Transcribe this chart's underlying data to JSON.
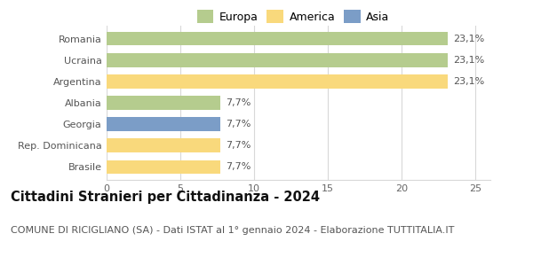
{
  "categories": [
    "Romania",
    "Ucraina",
    "Argentina",
    "Albania",
    "Georgia",
    "Rep. Dominicana",
    "Brasile"
  ],
  "values": [
    23.1,
    23.1,
    23.1,
    7.7,
    7.7,
    7.7,
    7.7
  ],
  "labels": [
    "23,1%",
    "23,1%",
    "23,1%",
    "7,7%",
    "7,7%",
    "7,7%",
    "7,7%"
  ],
  "bar_colors": [
    "#b5cc8e",
    "#b5cc8e",
    "#f9d97c",
    "#b5cc8e",
    "#7b9dc7",
    "#f9d97c",
    "#f9d97c"
  ],
  "legend": [
    {
      "label": "Europa",
      "color": "#b5cc8e"
    },
    {
      "label": "America",
      "color": "#f9d97c"
    },
    {
      "label": "Asia",
      "color": "#7b9dc7"
    }
  ],
  "xlim": [
    0,
    26
  ],
  "xticks": [
    0,
    5,
    10,
    15,
    20,
    25
  ],
  "title": "Cittadini Stranieri per Cittadinanza - 2024",
  "subtitle": "COMUNE DI RICIGLIANO (SA) - Dati ISTAT al 1° gennaio 2024 - Elaborazione TUTTITALIA.IT",
  "title_fontsize": 10.5,
  "subtitle_fontsize": 8,
  "label_fontsize": 8,
  "tick_fontsize": 8,
  "legend_fontsize": 9,
  "background_color": "#ffffff",
  "grid_color": "#d8d8d8",
  "bar_height": 0.65
}
